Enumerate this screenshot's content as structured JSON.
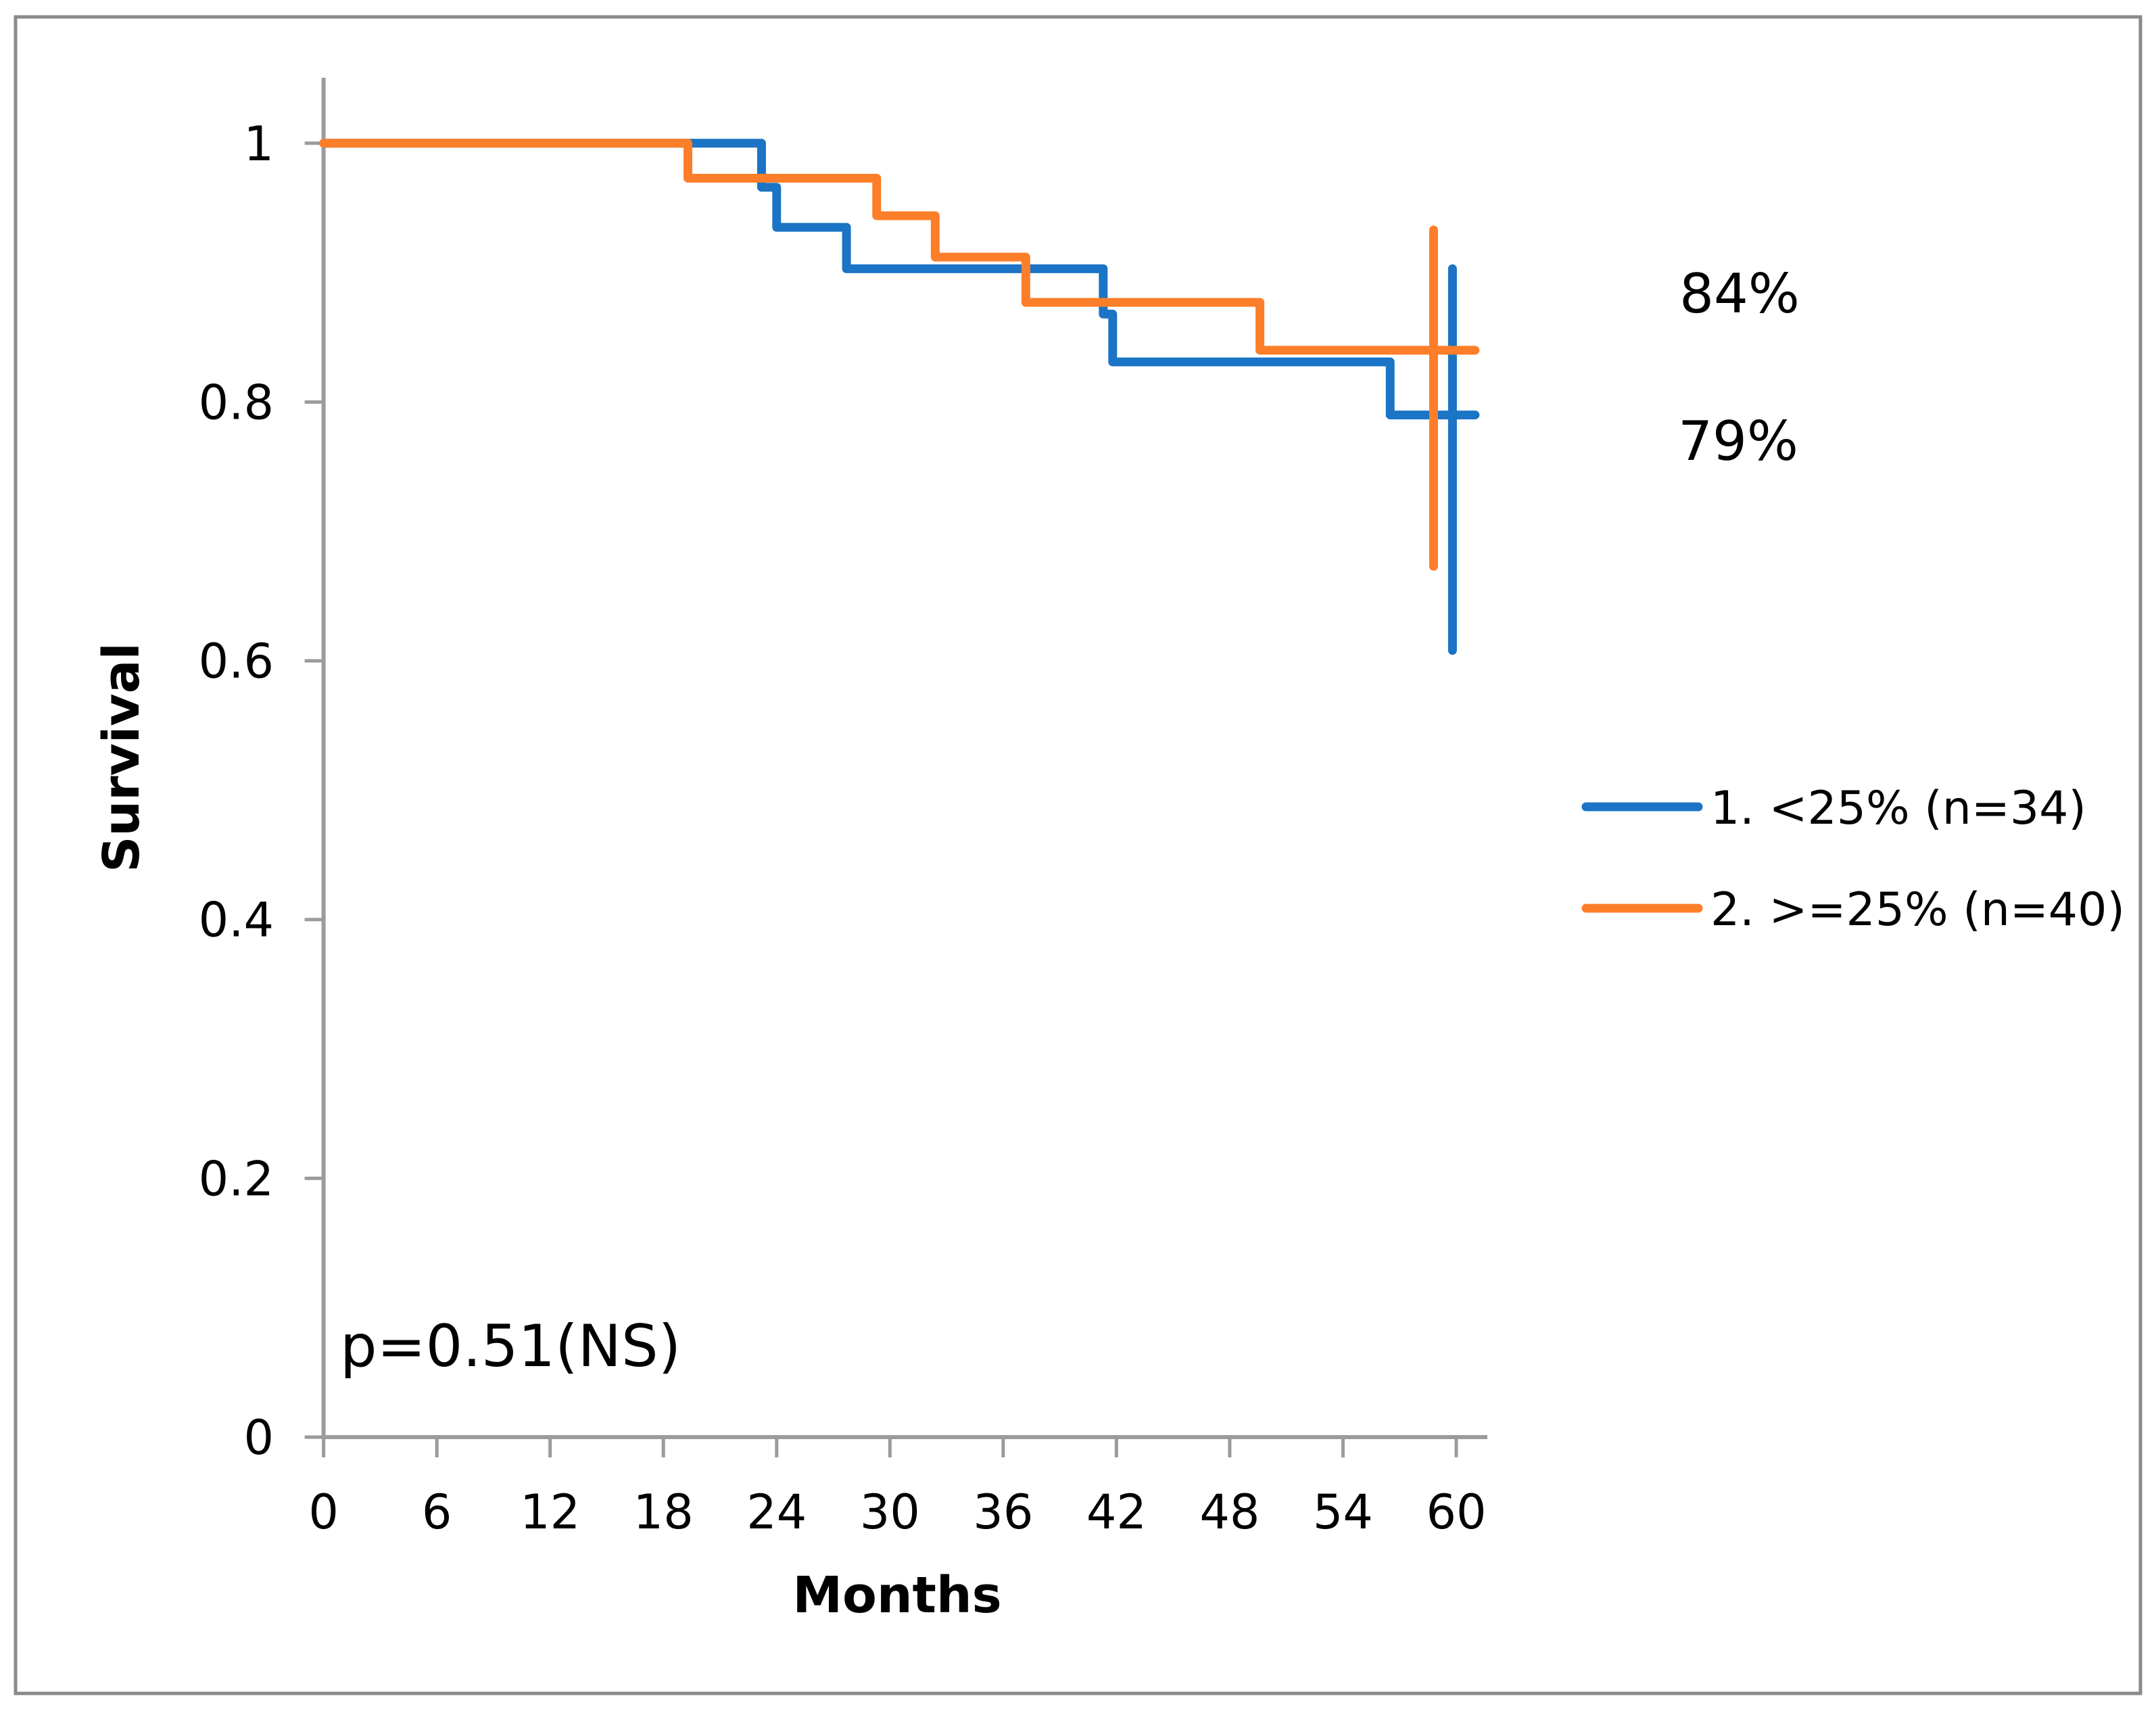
{
  "figure": {
    "background": "#ffffff",
    "border_color": "#8a8a8a"
  },
  "chart_data": {
    "type": "line",
    "subtype": "kaplan_meier_step",
    "title": "",
    "xlabel": "Months",
    "ylabel": "Survival",
    "x_ticks": [
      0,
      6,
      12,
      18,
      24,
      30,
      36,
      42,
      48,
      54,
      60
    ],
    "y_ticks": [
      0,
      0.2,
      0.4,
      0.6,
      0.8,
      1
    ],
    "xlim": [
      0,
      61.6
    ],
    "ylim": [
      0,
      1.05
    ],
    "grid": false,
    "axis_color": "#9b9b9b",
    "text_color": "#000000",
    "legend_position": "right-center",
    "series": [
      {
        "id": "lt25",
        "name": "1. <25% (n=34)",
        "color": "#1b74c5",
        "start": 1,
        "drops": [
          {
            "x": 23.2,
            "to": 0.966
          },
          {
            "x": 24.0,
            "to": 0.935
          },
          {
            "x": 27.7,
            "to": 0.903
          },
          {
            "x": 41.3,
            "to": 0.868
          },
          {
            "x": 41.8,
            "to": 0.831
          },
          {
            "x": 56.5,
            "to": 0.79
          }
        ],
        "x_end": 61,
        "final_survival": 0.79,
        "error_bar": {
          "x": 59.8,
          "low": 0.608,
          "high": 0.903
        }
      },
      {
        "id": "ge25",
        "name": "2. >=25% (n=40)",
        "color": "#fd7e29",
        "start": 1,
        "drops": [
          {
            "x": 19.3,
            "to": 0.973
          },
          {
            "x": 29.3,
            "to": 0.944
          },
          {
            "x": 32.4,
            "to": 0.912
          },
          {
            "x": 37.2,
            "to": 0.877
          },
          {
            "x": 49.6,
            "to": 0.84
          }
        ],
        "x_end": 61,
        "final_survival": 0.84,
        "error_bar": {
          "x": 58.8,
          "low": 0.673,
          "high": 0.933
        }
      }
    ],
    "annotations": [
      {
        "id": "pct-ge25",
        "text": "84%"
      },
      {
        "id": "pct-lt25",
        "text": "79%"
      },
      {
        "id": "p-value",
        "text": "p=0.51(NS)"
      }
    ]
  }
}
